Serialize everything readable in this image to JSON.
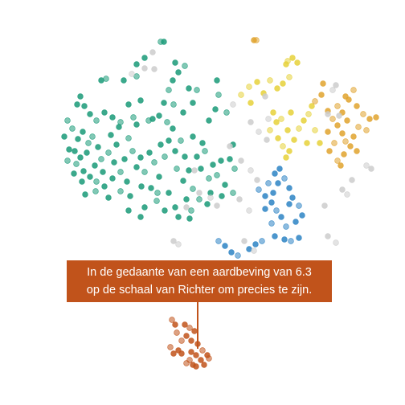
{
  "chart_data": {
    "type": "scatter",
    "title": "",
    "xlabel": "",
    "ylabel": "",
    "grid": false,
    "legend": "none",
    "annotation": {
      "line1": "In de gedaante van een aardbeving van 6.3",
      "line2": "op de schaal van Richter om precies te zijn.",
      "background_color": "#c1531b",
      "text_color": "#ffffff"
    },
    "series": [
      {
        "color": "#1a9a78",
        "points": [
          [
            90,
            160
          ],
          [
            97,
            173
          ],
          [
            103,
            164
          ],
          [
            110,
            178
          ],
          [
            93,
            188
          ],
          [
            100,
            196
          ],
          [
            115,
            170
          ],
          [
            122,
            183
          ],
          [
            108,
            190
          ],
          [
            95,
            204
          ],
          [
            104,
            213
          ],
          [
            118,
            206
          ],
          [
            126,
            198
          ],
          [
            112,
            220
          ],
          [
            128,
            214
          ],
          [
            135,
            190
          ],
          [
            142,
            202
          ],
          [
            130,
            232
          ],
          [
            119,
            238
          ],
          [
            106,
            242
          ],
          [
            140,
            222
          ],
          [
            150,
            214
          ],
          [
            145,
            180
          ],
          [
            155,
            198
          ],
          [
            160,
            172
          ],
          [
            138,
            168
          ],
          [
            148,
            158
          ],
          [
            165,
            188
          ],
          [
            170,
            208
          ],
          [
            158,
            226
          ],
          [
            150,
            238
          ],
          [
            162,
            244
          ],
          [
            176,
            232
          ],
          [
            180,
            214
          ],
          [
            175,
            196
          ],
          [
            186,
            190
          ],
          [
            192,
            202
          ],
          [
            198,
            220
          ],
          [
            188,
            234
          ],
          [
            166,
            146
          ],
          [
            160,
            130
          ],
          [
            175,
            125
          ],
          [
            185,
            150
          ],
          [
            170,
            155
          ],
          [
            200,
            180
          ],
          [
            205,
            195
          ],
          [
            210,
            175
          ],
          [
            215,
            160
          ],
          [
            225,
            175
          ],
          [
            218,
            188
          ],
          [
            230,
            195
          ],
          [
            220,
            210
          ],
          [
            228,
            225
          ],
          [
            235,
            212
          ],
          [
            240,
            235
          ],
          [
            232,
            248
          ],
          [
            210,
            240
          ],
          [
            195,
            250
          ],
          [
            180,
            258
          ],
          [
            175,
            270
          ],
          [
            150,
            152
          ],
          [
            140,
            146
          ],
          [
            130,
            140
          ],
          [
            120,
            150
          ],
          [
            112,
            142
          ],
          [
            96,
            130
          ],
          [
            84,
            150
          ],
          [
            80,
            170
          ],
          [
            86,
            186
          ],
          [
            84,
            200
          ],
          [
            92,
            216
          ],
          [
            102,
            226
          ],
          [
            120,
            226
          ],
          [
            135,
            246
          ],
          [
            160,
            262
          ],
          [
            196,
            240
          ],
          [
            205,
            262
          ],
          [
            218,
            258
          ],
          [
            238,
            262
          ],
          [
            250,
            210
          ],
          [
            245,
            195
          ],
          [
            255,
            188
          ],
          [
            252,
            178
          ],
          [
            240,
            170
          ],
          [
            260,
            222
          ],
          [
            265,
            205
          ],
          [
            275,
            200
          ],
          [
            270,
            218
          ],
          [
            262,
            240
          ],
          [
            258,
            254
          ],
          [
            248,
            248
          ],
          [
            236,
            272
          ],
          [
            222,
            270
          ],
          [
            132,
            98
          ],
          [
            126,
            100
          ],
          [
            154,
            100
          ],
          [
            170,
            95
          ],
          [
            180,
            72
          ],
          [
            170,
            80
          ],
          [
            210,
            112
          ],
          [
            215,
            100
          ],
          [
            222,
            90
          ],
          [
            230,
            82
          ],
          [
            218,
            78
          ],
          [
            235,
            110
          ],
          [
            245,
            112
          ],
          [
            240,
            128
          ],
          [
            228,
            140
          ],
          [
            216,
            130
          ],
          [
            204,
            128
          ],
          [
            198,
            144
          ],
          [
            208,
            152
          ],
          [
            190,
            148
          ],
          [
            268,
            136
          ],
          [
            272,
            118
          ],
          [
            270,
            100
          ],
          [
            260,
            150
          ],
          [
            282,
            140
          ],
          [
            290,
            180
          ],
          [
            286,
            198
          ],
          [
            292,
            210
          ],
          [
            280,
            230
          ],
          [
            276,
            244
          ],
          [
            290,
            240
          ],
          [
            100,
            120
          ],
          [
            105,
            132
          ],
          [
            200,
            52
          ],
          [
            204,
            52
          ]
        ]
      },
      {
        "color": "#e6d13a",
        "points": [
          [
            310,
            108
          ],
          [
            320,
            102
          ],
          [
            328,
            116
          ],
          [
            336,
            100
          ],
          [
            345,
            110
          ],
          [
            352,
            104
          ],
          [
            360,
            96
          ],
          [
            356,
            80
          ],
          [
            364,
            72
          ],
          [
            358,
            76
          ],
          [
            370,
            78
          ],
          [
            340,
            140
          ],
          [
            350,
            148
          ],
          [
            358,
            162
          ],
          [
            346,
            172
          ],
          [
            352,
            182
          ],
          [
            360,
            188
          ],
          [
            366,
            174
          ],
          [
            372,
            160
          ],
          [
            356,
            196
          ],
          [
            378,
            150
          ],
          [
            384,
            142
          ],
          [
            388,
            132
          ],
          [
            382,
            178
          ],
          [
            392,
            162
          ],
          [
            398,
            178
          ],
          [
            362,
            140
          ],
          [
            300,
            118
          ],
          [
            312,
            128
          ],
          [
            344,
            152
          ],
          [
            336,
            162
          ]
        ]
      },
      {
        "color": "#e0a32e",
        "points": [
          [
            392,
            126
          ],
          [
            400,
            118
          ],
          [
            408,
            138
          ],
          [
            414,
            148
          ],
          [
            420,
            156
          ],
          [
            426,
            166
          ],
          [
            430,
            176
          ],
          [
            436,
            182
          ],
          [
            440,
            170
          ],
          [
            446,
            158
          ],
          [
            432,
            150
          ],
          [
            426,
            140
          ],
          [
            420,
            132
          ],
          [
            434,
            124
          ],
          [
            444,
            132
          ],
          [
            452,
            142
          ],
          [
            460,
            148
          ],
          [
            468,
            146
          ],
          [
            456,
            162
          ],
          [
            444,
            188
          ],
          [
            428,
            192
          ],
          [
            416,
            178
          ],
          [
            408,
            164
          ],
          [
            410,
            188
          ],
          [
            420,
            200
          ],
          [
            424,
            206
          ],
          [
            430,
            120
          ],
          [
            440,
            112
          ],
          [
            402,
            104
          ],
          [
            316,
            50
          ],
          [
            319,
            50
          ]
        ]
      },
      {
        "color": "#2d84c4",
        "points": [
          [
            322,
            236
          ],
          [
            330,
            244
          ],
          [
            338,
            252
          ],
          [
            344,
            262
          ],
          [
            350,
            270
          ],
          [
            346,
            228
          ],
          [
            354,
            222
          ],
          [
            360,
            234
          ],
          [
            364,
            246
          ],
          [
            372,
            256
          ],
          [
            376,
            268
          ],
          [
            368,
            276
          ],
          [
            356,
            282
          ],
          [
            360,
            254
          ],
          [
            340,
            240
          ],
          [
            334,
            228
          ],
          [
            342,
            216
          ],
          [
            348,
            210
          ],
          [
            338,
            278
          ],
          [
            330,
            260
          ],
          [
            354,
            298
          ],
          [
            362,
            300
          ],
          [
            372,
            296
          ],
          [
            342,
            294
          ],
          [
            326,
            300
          ],
          [
            318,
            304
          ],
          [
            310,
            310
          ],
          [
            272,
            300
          ],
          [
            280,
            306
          ],
          [
            288,
            314
          ],
          [
            296,
            318
          ]
        ]
      },
      {
        "color": "#cccccc",
        "points": [
          [
            290,
            130
          ],
          [
            286,
            182
          ],
          [
            300,
            200
          ],
          [
            312,
            212
          ],
          [
            320,
            224
          ],
          [
            248,
            240
          ],
          [
            262,
            246
          ],
          [
            270,
            256
          ],
          [
            180,
            85
          ],
          [
            164,
            92
          ],
          [
            190,
            65
          ],
          [
            418,
            106
          ],
          [
            414,
            112
          ],
          [
            408,
            142
          ],
          [
            422,
            144
          ],
          [
            456,
            206
          ],
          [
            462,
            210
          ],
          [
            438,
            224
          ],
          [
            432,
            242
          ],
          [
            426,
            236
          ],
          [
            408,
            294
          ],
          [
            418,
            302
          ],
          [
            404,
            256
          ],
          [
            312,
            152
          ],
          [
            322,
            164
          ],
          [
            332,
            174
          ],
          [
            304,
            300
          ],
          [
            316,
            312
          ],
          [
            242,
            212
          ],
          [
            232,
            258
          ],
          [
            310,
            262
          ],
          [
            298,
            248
          ],
          [
            330,
            120
          ],
          [
            334,
            148
          ],
          [
            192,
            86
          ],
          [
            216,
            300
          ],
          [
            222,
            304
          ]
        ]
      },
      {
        "color": "#c1531b",
        "points": [
          [
            214,
            398
          ],
          [
            218,
            404
          ],
          [
            230,
            404
          ],
          [
            236,
            408
          ],
          [
            242,
            412
          ],
          [
            232,
            418
          ],
          [
            226,
            424
          ],
          [
            238,
            424
          ],
          [
            246,
            428
          ],
          [
            252,
            436
          ],
          [
            258,
            442
          ],
          [
            244,
            442
          ],
          [
            236,
            448
          ],
          [
            250,
            448
          ],
          [
            240,
            454
          ],
          [
            232,
            452
          ],
          [
            222,
            436
          ],
          [
            216,
            440
          ],
          [
            212,
            432
          ],
          [
            226,
            440
          ],
          [
            238,
            438
          ],
          [
            220,
            414
          ],
          [
            244,
            456
          ],
          [
            254,
            454
          ],
          [
            260,
            446
          ]
        ]
      }
    ]
  }
}
